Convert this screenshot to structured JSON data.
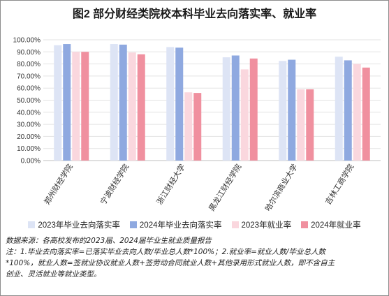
{
  "title": "图2 部分财经类院校本科毕业去向落实率、就业率",
  "chart_data": {
    "type": "bar",
    "title": "图2 部分财经类院校本科毕业去向落实率、就业率",
    "categories": [
      "郑州财经学院",
      "宁波财经学院",
      "浙江财经大学",
      "黑龙江财经学院",
      "哈尔滨商业大学",
      "吉林工商学院"
    ],
    "series": [
      {
        "name": "2023年毕业去向落实率",
        "color": "#dde4f5",
        "values": [
          95.5,
          96.5,
          94.0,
          85.5,
          82.5,
          86.0
        ]
      },
      {
        "name": "2024年毕业去向落实率",
        "color": "#8fa9e0",
        "values": [
          96.5,
          96.0,
          93.5,
          87.0,
          83.5,
          83.0
        ]
      },
      {
        "name": "2023年就业率",
        "color": "#fad7de",
        "values": [
          90.0,
          89.5,
          56.5,
          75.5,
          59.0,
          80.0
        ]
      },
      {
        "name": "2024年就业率",
        "color": "#f0909f",
        "values": [
          90.0,
          88.0,
          56.0,
          84.5,
          59.0,
          77.0
        ]
      }
    ],
    "yticks": [
      "0.00%",
      "10.00%",
      "20.00%",
      "30.00%",
      "40.00%",
      "50.00%",
      "60.00%",
      "70.00%",
      "80.00%",
      "90.00%",
      "100.00%"
    ],
    "ylim": [
      0,
      100
    ],
    "grid": true,
    "legend_position": "bottom"
  },
  "notes": {
    "source": "数据来源：各高校发布的2023届、2024届毕业生就业质量报告",
    "line1": "注：1.毕业去向落实率=已落实毕业去向人数/毕业总人数*100%；2.就业率=就业人数/毕业总人数",
    "line2": "*100%，就业人数=签就业协议就业人数+签劳动合同就业人数+其他录用形式就业人数，即不含自主",
    "line3": "创业、灵活就业等就业类型。"
  }
}
